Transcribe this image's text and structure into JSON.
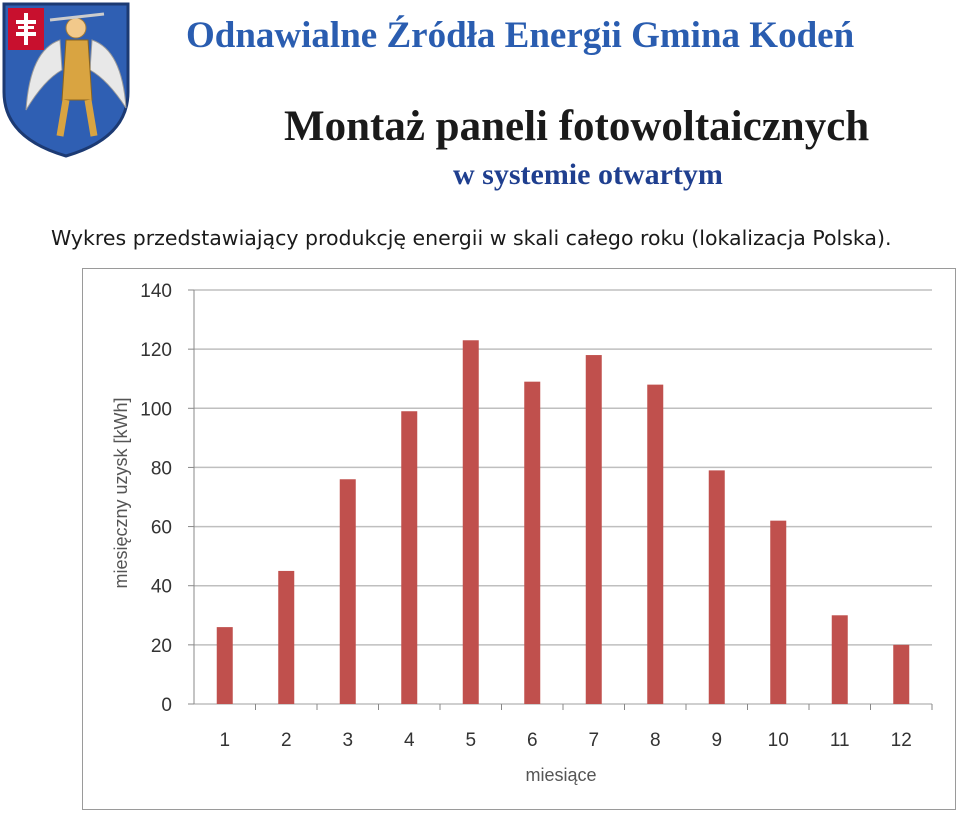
{
  "header": {
    "org_title": "Odnawialne Źródła Energii Gmina Kodeń",
    "main_title": "Montaż paneli fotowoltaicznych",
    "sub_title": "w systemie otwartym",
    "caption": "Wykres przedstawiający produkcję energii w skali całego roku (lokalizacja Polska)."
  },
  "colors": {
    "bar": "#c0504d",
    "org_title": "#2a5db0",
    "sub_title": "#1f3f8f",
    "grid": "#bfbfbf"
  },
  "chart_data": {
    "type": "bar",
    "categories": [
      "1",
      "2",
      "3",
      "4",
      "5",
      "6",
      "7",
      "8",
      "9",
      "10",
      "11",
      "12"
    ],
    "values": [
      26,
      45,
      76,
      99,
      123,
      109,
      118,
      108,
      79,
      62,
      30,
      20
    ],
    "xlabel": "miesiące",
    "ylabel": "miesięczny uzysk [kWh]",
    "ylim": [
      0,
      140
    ],
    "yticks": [
      0,
      20,
      40,
      60,
      80,
      100,
      120,
      140
    ],
    "grid": true,
    "legend": "none"
  }
}
